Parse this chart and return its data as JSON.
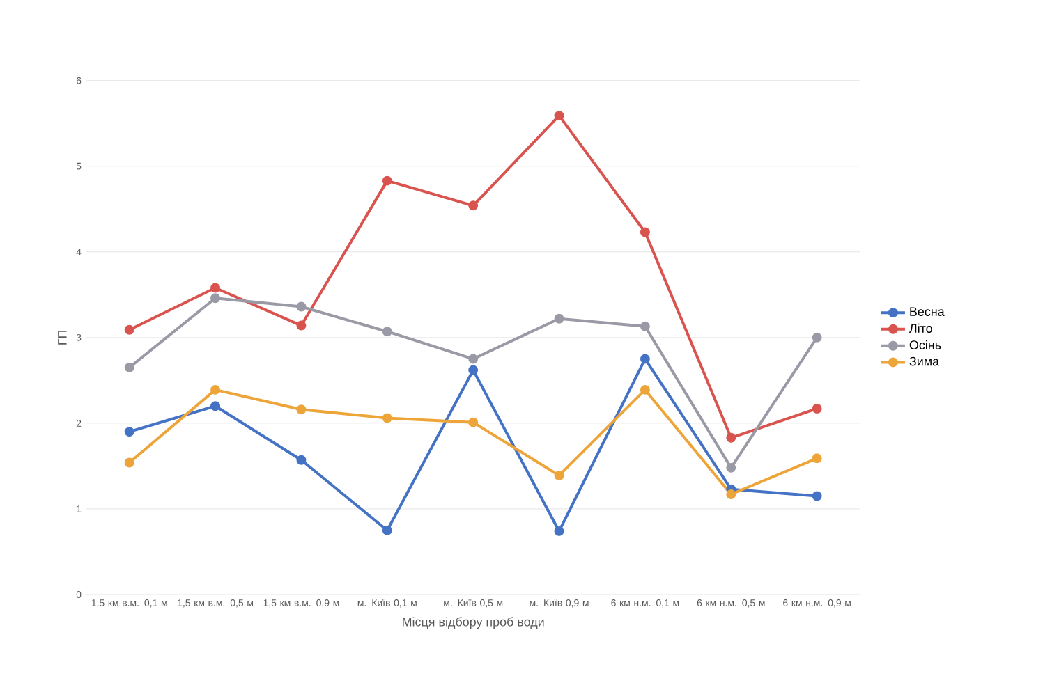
{
  "chart_data": {
    "type": "line",
    "xlabel": "Місця відбору проб води",
    "ylabel": "ГП",
    "categories": [
      "1,5 км в.м. 0,1 м",
      "1,5 км в.м. 0,5 м",
      "1,5 км в.м. 0,9 м",
      "м. Київ 0,1 м",
      "м. Київ 0,5 м",
      "м. Київ 0,9 м",
      "6 км н.м. 0,1 м",
      "6 км н.м. 0,5 м",
      "6 км н.м. 0,9 м"
    ],
    "series": [
      {
        "name": "Весна",
        "color": "#4472c4",
        "values": [
          1.9,
          2.2,
          1.57,
          0.75,
          2.62,
          0.74,
          2.75,
          1.23,
          1.15
        ]
      },
      {
        "name": "Літо",
        "color": "#d9534f",
        "values": [
          3.09,
          3.58,
          3.14,
          4.83,
          4.54,
          5.59,
          4.23,
          1.83,
          2.17
        ]
      },
      {
        "name": "Осінь",
        "color": "#9a9aa6",
        "values": [
          2.65,
          3.46,
          3.36,
          3.07,
          2.75,
          3.22,
          3.13,
          1.48,
          3.0
        ]
      },
      {
        "name": "Зима",
        "color": "#eda53a",
        "values": [
          1.54,
          2.39,
          2.16,
          2.06,
          2.01,
          1.39,
          2.39,
          1.17,
          1.59
        ]
      }
    ],
    "ylim": [
      0,
      6
    ],
    "yticks": [
      0,
      1,
      2,
      3,
      4,
      5,
      6
    ],
    "grid": "y",
    "legend": "right",
    "marker": "circle",
    "line_style": "solid"
  }
}
